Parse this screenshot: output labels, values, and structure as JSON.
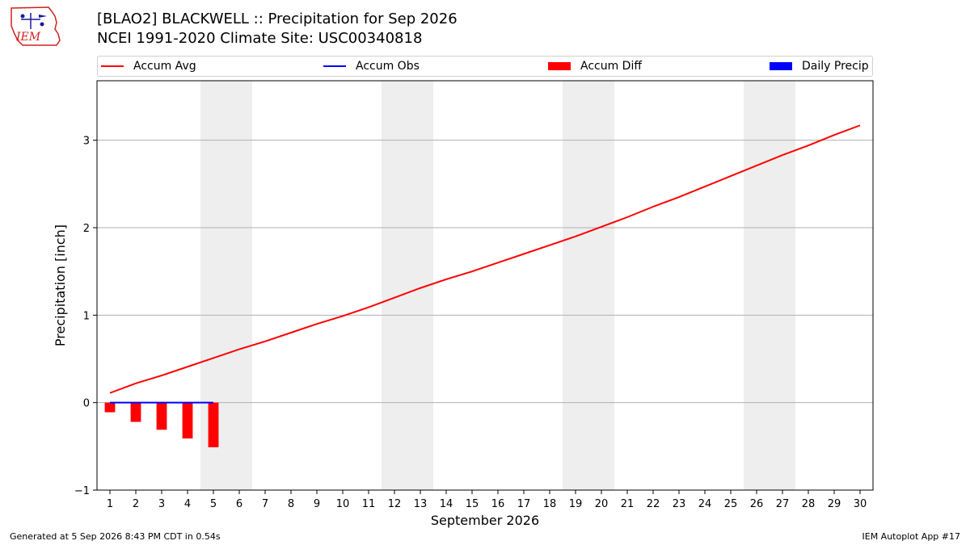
{
  "header": {
    "logo_text": "IEM",
    "title_line1": "[BLAO2] BLACKWELL :: Precipitation for Sep 2026",
    "title_line2": "NCEI 1991-2020 Climate Site: USC00340818"
  },
  "legend": {
    "placement": "top",
    "items": [
      {
        "label": "Accum Avg",
        "kind": "line",
        "color": "#ff0000"
      },
      {
        "label": "Accum Obs",
        "kind": "line",
        "color": "#0000ff"
      },
      {
        "label": "Accum Diff",
        "kind": "box",
        "color": "#ff0000"
      },
      {
        "label": "Daily Precip",
        "kind": "box",
        "color": "#0000ff"
      }
    ]
  },
  "chart_data": {
    "type": "line",
    "xlabel": "September 2026",
    "ylabel": "Precipitation [inch]",
    "xlim": [
      0.5,
      30.5
    ],
    "ylim": [
      -1.0,
      3.68
    ],
    "yticks": [
      -1,
      0,
      1,
      2,
      3
    ],
    "xticks": [
      1,
      2,
      3,
      4,
      5,
      6,
      7,
      8,
      9,
      10,
      11,
      12,
      13,
      14,
      15,
      16,
      17,
      18,
      19,
      20,
      21,
      22,
      23,
      24,
      25,
      26,
      27,
      28,
      29,
      30
    ],
    "grid": "horizontal",
    "weekend_shading": [
      [
        4.5,
        6.5
      ],
      [
        11.5,
        13.5
      ],
      [
        18.5,
        20.5
      ],
      [
        25.5,
        27.5
      ]
    ],
    "shading_color": "#eeeeee",
    "series": [
      {
        "name": "Accum Avg",
        "kind": "line",
        "color": "#ff0000",
        "x": [
          1,
          2,
          3,
          4,
          5,
          6,
          7,
          8,
          9,
          10,
          11,
          12,
          13,
          14,
          15,
          16,
          17,
          18,
          19,
          20,
          21,
          22,
          23,
          24,
          25,
          26,
          27,
          28,
          29,
          30
        ],
        "values": [
          0.11,
          0.22,
          0.31,
          0.41,
          0.51,
          0.61,
          0.7,
          0.8,
          0.9,
          0.99,
          1.09,
          1.2,
          1.31,
          1.41,
          1.5,
          1.6,
          1.7,
          1.8,
          1.9,
          2.01,
          2.12,
          2.24,
          2.35,
          2.47,
          2.59,
          2.71,
          2.83,
          2.94,
          3.06,
          3.17
        ]
      },
      {
        "name": "Accum Obs",
        "kind": "line",
        "color": "#0000ff",
        "x": [
          1,
          2,
          3,
          4,
          5
        ],
        "values": [
          0,
          0,
          0,
          0,
          0
        ]
      },
      {
        "name": "Accum Diff",
        "kind": "bar",
        "color": "#ff0000",
        "x": [
          1,
          2,
          3,
          4,
          5
        ],
        "values": [
          -0.11,
          -0.22,
          -0.31,
          -0.41,
          -0.51
        ]
      },
      {
        "name": "Daily Precip",
        "kind": "bar",
        "color": "#0000ff",
        "x": [
          1,
          2,
          3,
          4,
          5
        ],
        "values": [
          0,
          0,
          0,
          0,
          0
        ]
      }
    ]
  },
  "footer": {
    "left": "Generated at 5 Sep 2026 8:43 PM CDT in 0.54s",
    "right": "IEM Autoplot App #17"
  }
}
